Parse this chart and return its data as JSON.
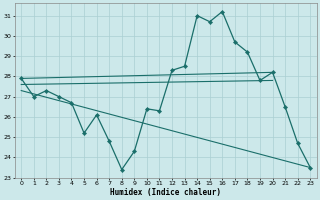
{
  "xlabel": "Humidex (Indice chaleur)",
  "xlim": [
    -0.5,
    23.5
  ],
  "ylim": [
    23,
    31.6
  ],
  "yticks": [
    23,
    24,
    25,
    26,
    27,
    28,
    29,
    30,
    31
  ],
  "xticks": [
    0,
    1,
    2,
    3,
    4,
    5,
    6,
    7,
    8,
    9,
    10,
    11,
    12,
    13,
    14,
    15,
    16,
    17,
    18,
    19,
    20,
    21,
    22,
    23
  ],
  "bg_color": "#cce8ea",
  "grid_color": "#aacfd2",
  "line_color": "#1a6e6a",
  "main_curve": {
    "x": [
      0,
      1,
      2,
      3,
      4,
      5,
      6,
      7,
      8,
      9,
      10,
      11,
      12,
      13,
      14,
      15,
      16,
      17,
      18,
      19,
      20,
      21,
      22,
      23
    ],
    "y": [
      27.9,
      27.0,
      27.3,
      27.0,
      26.7,
      25.2,
      26.1,
      24.8,
      23.4,
      24.3,
      26.4,
      26.3,
      28.3,
      28.5,
      31.0,
      30.7,
      31.2,
      29.7,
      29.2,
      27.8,
      28.2,
      26.5,
      24.7,
      23.5
    ]
  },
  "straight_lines": [
    {
      "x": [
        0,
        20
      ],
      "y": [
        27.9,
        28.2
      ]
    },
    {
      "x": [
        0,
        20
      ],
      "y": [
        27.6,
        27.8
      ]
    },
    {
      "x": [
        0,
        23
      ],
      "y": [
        27.3,
        23.5
      ]
    }
  ]
}
